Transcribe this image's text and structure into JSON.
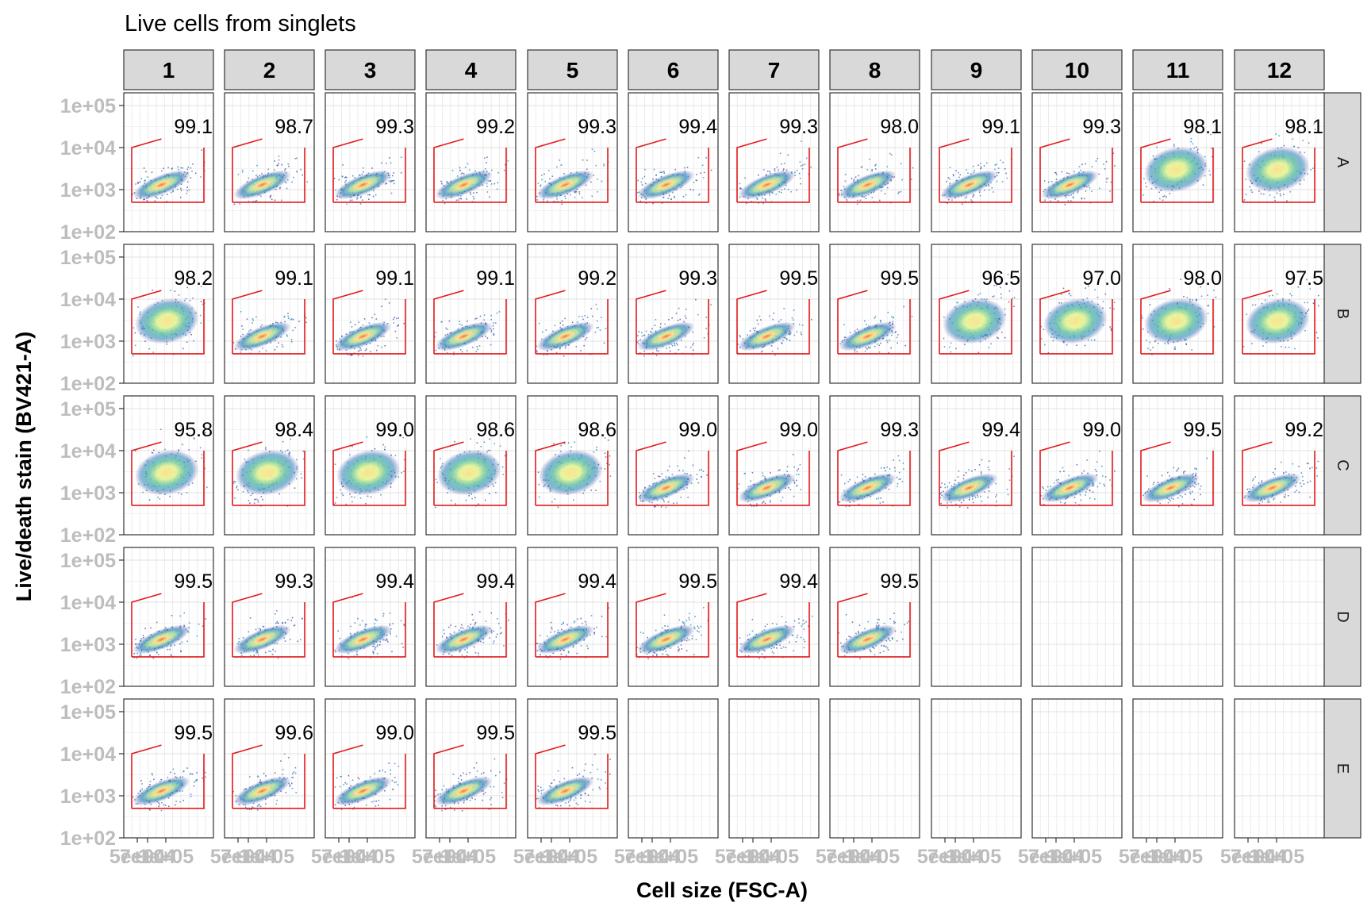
{
  "chart_data": {
    "type": "scatter",
    "title": "Live cells from singlets",
    "xlabel": "Cell size (FSC-A)",
    "ylabel": "Live/death stain (BV421-A)",
    "y_scale": "log10",
    "ylim": [
      100,
      200000
    ],
    "yticks": [
      "1e+02",
      "1e+03",
      "1e+04",
      "1e+05"
    ],
    "x_tick_labels": [
      "5e+04",
      "7e+04",
      "1e+05"
    ],
    "grid": true,
    "columns": [
      "1",
      "2",
      "3",
      "4",
      "5",
      "6",
      "7",
      "8",
      "9",
      "10",
      "11",
      "12"
    ],
    "rows": [
      "A",
      "B",
      "C",
      "D",
      "E"
    ],
    "gate_color": "#e31a1c",
    "density_palette": [
      "#5e4fa2",
      "#3288bd",
      "#66c2a5",
      "#abdda4",
      "#e6f598",
      "#fee08b",
      "#fdae61",
      "#f46d43",
      "#d53e4f"
    ],
    "gate_percentages": [
      [
        "99.1",
        "98.7",
        "99.3",
        "99.2",
        "99.3",
        "99.4",
        "99.3",
        "98.0",
        "99.1",
        "99.3",
        "98.1",
        "98.1"
      ],
      [
        "98.2",
        "99.1",
        "99.1",
        "99.1",
        "99.2",
        "99.3",
        "99.5",
        "99.5",
        "96.5",
        "97.0",
        "98.0",
        "97.5"
      ],
      [
        "95.8",
        "98.4",
        "99.0",
        "98.6",
        "98.6",
        "99.0",
        "99.0",
        "99.3",
        "99.4",
        "99.0",
        "99.5",
        "99.2"
      ],
      [
        "99.5",
        "99.3",
        "99.4",
        "99.4",
        "99.4",
        "99.5",
        "99.4",
        "99.5",
        null,
        null,
        null,
        null
      ],
      [
        "99.5",
        "99.6",
        "99.0",
        "99.5",
        "99.5",
        null,
        null,
        null,
        null,
        null,
        null,
        null
      ]
    ]
  }
}
